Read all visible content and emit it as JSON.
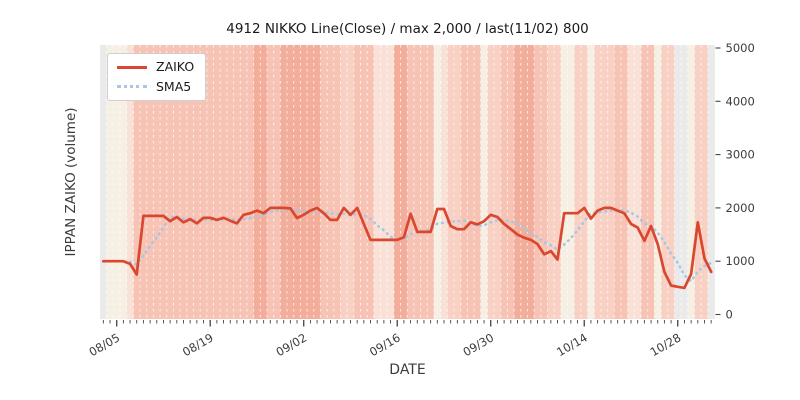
{
  "title": "4912 NIKKO Line(Close) / max 2,000 / last(11/02) 800",
  "xlabel": "DATE",
  "ylabel": "IPPAN ZAIKO (volume)",
  "legend": [
    {
      "label": "ZAIKO"
    },
    {
      "label": "SMA5"
    }
  ],
  "colors": {
    "zaiko_line": "#d9472f",
    "sma5_line": "#a9c6e2",
    "tick_label": "#3c3c3c",
    "grid_dash": "rgba(255,255,255,0.75)"
  },
  "chart_data": {
    "type": "line",
    "title": "4912 NIKKO Line(Close) / max 2,000 / last(11/02) 800",
    "xlabel": "DATE",
    "ylabel": "IPPAN ZAIKO (volume)",
    "ylim": [
      0,
      5000
    ],
    "yticks": [
      0,
      1000,
      2000,
      3000,
      4000,
      5000
    ],
    "yaxis_side": "right",
    "legend_position": "upper left",
    "grid": "vertical white dashed line per day, no horizontal grid",
    "xtick_labels": [
      "08/05",
      "08/19",
      "09/02",
      "09/16",
      "09/30",
      "10/14",
      "10/28"
    ],
    "xtick_indices": [
      2,
      16,
      30,
      44,
      58,
      72,
      86
    ],
    "x_dates": [
      "08/03",
      "08/04",
      "08/05",
      "08/06",
      "08/07",
      "08/08",
      "08/09",
      "08/10",
      "08/11",
      "08/12",
      "08/13",
      "08/14",
      "08/15",
      "08/16",
      "08/17",
      "08/18",
      "08/19",
      "08/20",
      "08/21",
      "08/22",
      "08/23",
      "08/24",
      "08/25",
      "08/26",
      "08/27",
      "08/28",
      "08/29",
      "08/30",
      "08/31",
      "09/01",
      "09/02",
      "09/03",
      "09/04",
      "09/05",
      "09/06",
      "09/07",
      "09/08",
      "09/09",
      "09/10",
      "09/11",
      "09/12",
      "09/13",
      "09/14",
      "09/15",
      "09/16",
      "09/17",
      "09/18",
      "09/19",
      "09/20",
      "09/21",
      "09/22",
      "09/23",
      "09/24",
      "09/25",
      "09/26",
      "09/27",
      "09/28",
      "09/29",
      "09/30",
      "10/01",
      "10/02",
      "10/03",
      "10/04",
      "10/05",
      "10/06",
      "10/07",
      "10/08",
      "10/09",
      "10/10",
      "10/11",
      "10/12",
      "10/13",
      "10/14",
      "10/15",
      "10/16",
      "10/17",
      "10/18",
      "10/19",
      "10/20",
      "10/21",
      "10/22",
      "10/23",
      "10/24",
      "10/25",
      "10/26",
      "10/27",
      "10/28",
      "10/29",
      "10/30",
      "10/31",
      "11/01",
      "11/02"
    ],
    "series": [
      {
        "name": "ZAIKO",
        "style": "solid",
        "color": "#d9472f",
        "values": [
          1000,
          1000,
          1000,
          1000,
          950,
          750,
          1850,
          1850,
          1850,
          1850,
          1750,
          1830,
          1730,
          1790,
          1710,
          1815,
          1815,
          1775,
          1815,
          1760,
          1710,
          1870,
          1900,
          1950,
          1900,
          2000,
          2000,
          2000,
          1990,
          1810,
          1870,
          1950,
          2000,
          1900,
          1775,
          1775,
          2000,
          1870,
          2000,
          1700,
          1400,
          1400,
          1400,
          1400,
          1400,
          1450,
          1890,
          1550,
          1550,
          1550,
          1980,
          1980,
          1660,
          1600,
          1600,
          1730,
          1690,
          1750,
          1870,
          1830,
          1700,
          1600,
          1500,
          1440,
          1400,
          1320,
          1130,
          1190,
          1030,
          1900,
          1900,
          1900,
          2000,
          1800,
          1950,
          2000,
          2000,
          1950,
          1900,
          1700,
          1630,
          1380,
          1660,
          1320,
          800,
          545,
          520,
          500,
          760,
          1730,
          1050,
          800
        ]
      },
      {
        "name": "SMA5",
        "style": "dotted",
        "color": "#a9c6e2",
        "derived_from": "ZAIKO",
        "window": 5
      }
    ],
    "background_bands": {
      "description": "per-day vertical heat stripes (pale gray/cream to deep salmon)",
      "palette": [
        "#eaeaea",
        "#f6efe3",
        "#fae1d7",
        "#f8d0c4",
        "#f6c3b4",
        "#f3ad9b"
      ],
      "levels": [
        0,
        1,
        1,
        1,
        2,
        4,
        4,
        4,
        4,
        4,
        4,
        4,
        4,
        4,
        4,
        4,
        4,
        4,
        4,
        4,
        4,
        4,
        4,
        5,
        5,
        4,
        4,
        5,
        5,
        5,
        5,
        5,
        5,
        4,
        4,
        4,
        3,
        3,
        4,
        4,
        4,
        2,
        2,
        2,
        5,
        5,
        4,
        4,
        4,
        4,
        1,
        2,
        3,
        3,
        4,
        4,
        4,
        1,
        3,
        3,
        4,
        4,
        5,
        5,
        5,
        4,
        4,
        3,
        3,
        1,
        1,
        3,
        3,
        1,
        3,
        3,
        3,
        4,
        4,
        2,
        2,
        4,
        4,
        1,
        3,
        3,
        0,
        0,
        1,
        3,
        3,
        0
      ]
    }
  }
}
